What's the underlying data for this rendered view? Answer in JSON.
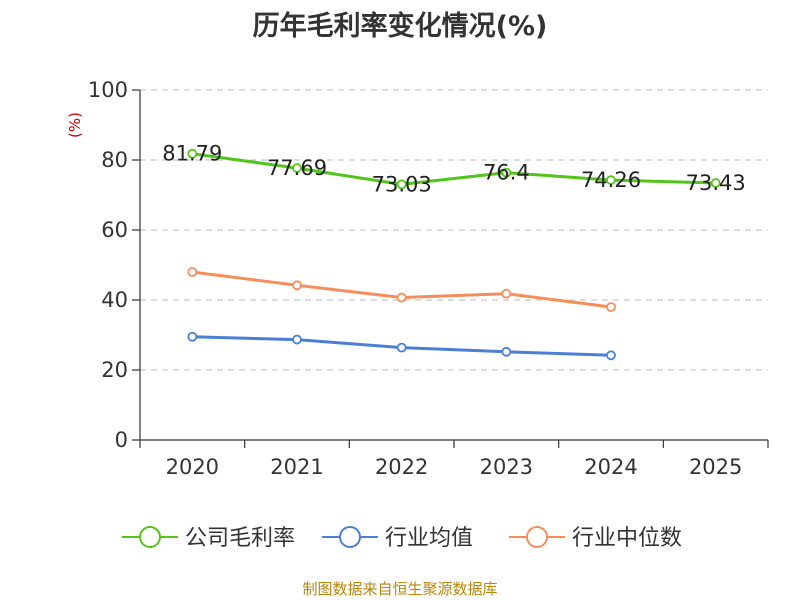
{
  "chart_data": {
    "type": "line",
    "title": "历年毛利率变化情况(%)",
    "ylabel": "(%)",
    "xlabel": "",
    "categories": [
      "2020",
      "2021",
      "2022",
      "2023",
      "2024",
      "2025"
    ],
    "ylim": [
      0,
      100
    ],
    "yticks": [
      0,
      20,
      40,
      60,
      80,
      100
    ],
    "grid": "horizontal-dashed",
    "legend_position": "bottom",
    "series": [
      {
        "name": "公司毛利率",
        "color": "#52c41a",
        "values": [
          81.79,
          77.69,
          73.03,
          76.4,
          74.26,
          73.43
        ],
        "labels": [
          "81.79",
          "77.69",
          "73.03",
          "76.4",
          "74.26",
          "73.43"
        ]
      },
      {
        "name": "行业均值",
        "color": "#4a7fd6",
        "values": [
          29.5,
          28.7,
          26.4,
          25.2,
          24.2,
          null
        ]
      },
      {
        "name": "行业中位数",
        "color": "#f58e5a",
        "values": [
          48.0,
          44.2,
          40.7,
          41.8,
          38.0,
          null
        ]
      }
    ]
  },
  "source": "制图数据来自恒生聚源数据库"
}
